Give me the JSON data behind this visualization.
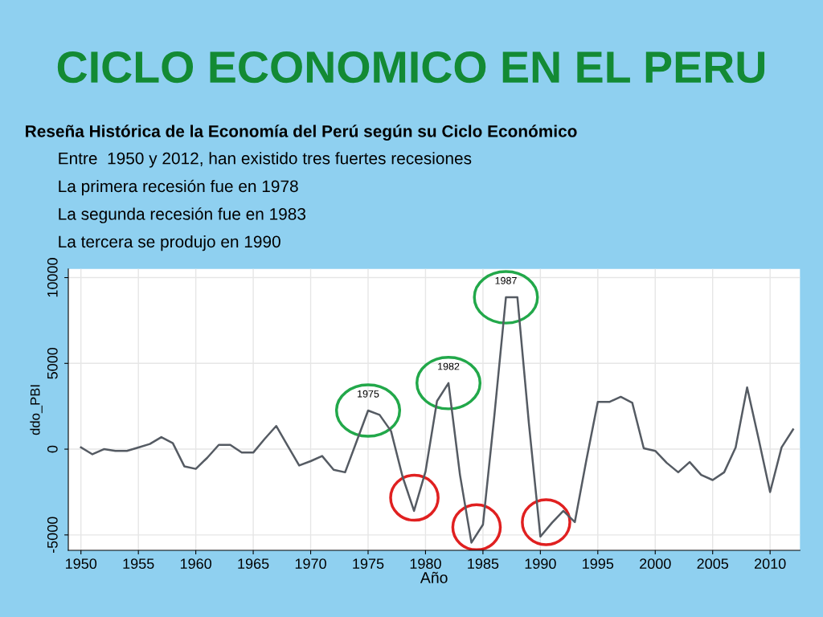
{
  "chart_data": {
    "type": "line",
    "title": "CICLO ECONOMICO EN EL PERU",
    "subtitle": "Reseña Histórica de la Economía del Perú según su Ciclo Económico",
    "annotations": [
      "Entre  1950 y 2012, han existido tres fuertes recesiones",
      "La primera recesión fue en 1978",
      "La segunda recesión fue en 1983",
      "La tercera se produjo en 1990",
      {
        "text": "1975",
        "x": 1975,
        "y": 2250
      },
      {
        "text": "1982",
        "x": 1982,
        "y": 3850
      },
      {
        "text": "1987",
        "x": 1987,
        "y": 8850
      }
    ],
    "xlabel": "Año",
    "ylabel": "ddo_PBI",
    "x": [
      1950,
      1951,
      1952,
      1953,
      1954,
      1955,
      1956,
      1957,
      1958,
      1959,
      1960,
      1961,
      1962,
      1963,
      1964,
      1965,
      1966,
      1967,
      1968,
      1969,
      1970,
      1971,
      1972,
      1973,
      1974,
      1975,
      1976,
      1977,
      1978,
      1979,
      1980,
      1981,
      1982,
      1983,
      1984,
      1985,
      1986,
      1987,
      1988,
      1989,
      1990,
      1991,
      1992,
      1993,
      1994,
      1995,
      1996,
      1997,
      1998,
      1999,
      2000,
      2001,
      2002,
      2003,
      2004,
      2005,
      2006,
      2007,
      2008,
      2009,
      2010,
      2011,
      2012
    ],
    "series": [
      {
        "color": "#555b63",
        "values": [
          100,
          -300,
          0,
          -100,
          -100,
          100,
          300,
          700,
          350,
          -1000,
          -1150,
          -500,
          250,
          250,
          -200,
          -200,
          600,
          1350,
          200,
          -950,
          -700,
          -400,
          -1200,
          -1350,
          450,
          2250,
          2000,
          1050,
          -1600,
          -3600,
          -1300,
          2800,
          3850,
          -1500,
          -5450,
          -4400,
          2000,
          8850,
          8850,
          1500,
          -5100,
          -4300,
          -3600,
          -4250,
          -650,
          2750,
          2750,
          3050,
          2700,
          50,
          -100,
          -800,
          -1350,
          -750,
          -1500,
          -1800,
          -1350,
          100,
          3600,
          600,
          -2500,
          100,
          1150
        ]
      }
    ],
    "xlim": [
      1948.9,
      2012.6
    ],
    "ylim": [
      -5900,
      10500
    ],
    "xticks": [
      1950,
      1955,
      1960,
      1965,
      1970,
      1975,
      1980,
      1985,
      1990,
      1995,
      2000,
      2005,
      2010
    ],
    "yticks": [
      -5000,
      0,
      5000,
      10000
    ],
    "grid": true,
    "legend": false,
    "marker": "none",
    "line_style": "solid"
  }
}
